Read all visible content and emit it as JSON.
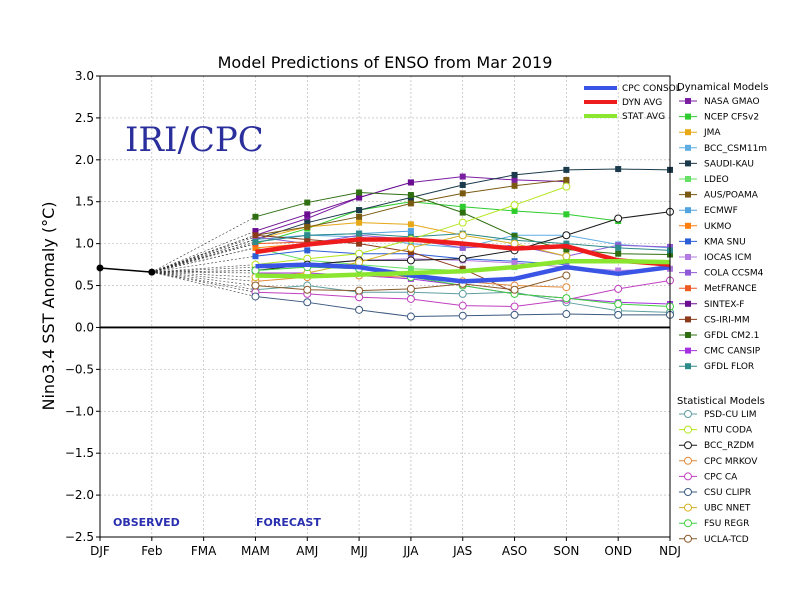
{
  "chart_data": {
    "type": "line",
    "title": "Model Predictions of ENSO from Mar 2019",
    "ylabel": "Nino3.4 SST Anomaly (°C)",
    "watermark": "IRI/CPC",
    "observed_label": "OBSERVED",
    "forecast_label": "FORECAST",
    "categories": [
      "DJF",
      "Feb",
      "FMA",
      "MAM",
      "AMJ",
      "MJJ",
      "JJA",
      "JAS",
      "ASO",
      "SON",
      "OND",
      "NDJ"
    ],
    "ylim": [
      -2.5,
      3.0
    ],
    "yticks": [
      "3.0",
      "2.5",
      "2.0",
      "1.5",
      "1.0",
      "0.5",
      "0.0",
      "−0.5",
      "−1.0",
      "−1.5",
      "−2.0",
      "−2.5"
    ],
    "grid": true,
    "observed": {
      "values": [
        0.71,
        0.66
      ]
    },
    "averages": [
      {
        "name": "CPC CONSOL",
        "color": "#3a55e6",
        "values": [
          null,
          null,
          null,
          0.73,
          0.75,
          0.72,
          0.62,
          0.55,
          0.58,
          0.72,
          0.64,
          0.72
        ]
      },
      {
        "name": "DYN AVG",
        "color": "#ee1c1c",
        "values": [
          null,
          null,
          null,
          0.9,
          0.99,
          1.05,
          1.05,
          1.0,
          0.94,
          0.97,
          0.8,
          0.75
        ]
      },
      {
        "name": "STAT AVG",
        "color": "#8ae62e",
        "values": [
          null,
          null,
          null,
          0.62,
          0.61,
          0.63,
          0.65,
          0.67,
          0.72,
          0.79,
          0.79,
          0.78
        ]
      }
    ],
    "dynamical_title": "Dynamical Models",
    "dynamical": [
      {
        "name": "NASA GMAO",
        "color": "#7b1fa2",
        "values": [
          null,
          null,
          null,
          1.1,
          1.3,
          1.55,
          1.73,
          1.8,
          1.76,
          1.74,
          null,
          null
        ]
      },
      {
        "name": "NCEP CFSv2",
        "color": "#2ecc2e",
        "values": [
          null,
          null,
          null,
          1.0,
          1.18,
          1.4,
          1.5,
          1.44,
          1.39,
          1.35,
          1.27,
          null
        ]
      },
      {
        "name": "JMA",
        "color": "#e6a817",
        "values": [
          null,
          null,
          null,
          1.05,
          1.2,
          1.25,
          1.23,
          1.1,
          null,
          null,
          null,
          null
        ]
      },
      {
        "name": "BCC_CSM11m",
        "color": "#5dade2",
        "values": [
          null,
          null,
          null,
          1.02,
          1.1,
          1.08,
          1.0,
          0.95,
          1.1,
          1.1,
          0.99,
          0.95
        ]
      },
      {
        "name": "SAUDI-KAU",
        "color": "#1b3a4b",
        "values": [
          null,
          null,
          null,
          1.05,
          1.25,
          1.4,
          1.55,
          1.7,
          1.82,
          1.88,
          1.89,
          1.88
        ]
      },
      {
        "name": "LDEO",
        "color": "#66e066",
        "values": [
          null,
          null,
          null,
          0.95,
          0.8,
          0.75,
          0.7,
          0.68,
          0.72,
          0.8,
          null,
          null
        ]
      },
      {
        "name": "AUS/POAMA",
        "color": "#7a5a10",
        "values": [
          null,
          null,
          null,
          1.1,
          1.2,
          1.32,
          1.48,
          1.6,
          1.69,
          1.76,
          null,
          null
        ]
      },
      {
        "name": "ECMWF",
        "color": "#4fa3e0",
        "values": [
          null,
          null,
          null,
          1.05,
          1.1,
          1.12,
          1.15,
          null,
          null,
          null,
          null,
          null
        ]
      },
      {
        "name": "UKMO",
        "color": "#ff7f0e",
        "values": [
          null,
          null,
          null,
          0.95,
          1.0,
          null,
          null,
          null,
          null,
          null,
          null,
          null
        ]
      },
      {
        "name": "KMA SNU",
        "color": "#2c5fd6",
        "values": [
          null,
          null,
          null,
          0.85,
          0.92,
          0.88,
          0.88,
          0.82,
          0.79,
          0.75,
          null,
          null
        ]
      },
      {
        "name": "IOCAS ICM",
        "color": "#b27ce0",
        "values": [
          null,
          null,
          null,
          0.72,
          0.75,
          0.8,
          0.82,
          0.8,
          0.77,
          0.72,
          0.68,
          0.7
        ]
      },
      {
        "name": "COLA CCSM4",
        "color": "#8e5ad6",
        "values": [
          null,
          null,
          null,
          1.08,
          1.0,
          1.1,
          1.05,
          0.95,
          0.98,
          0.85,
          0.98,
          0.96
        ]
      },
      {
        "name": "MetFRANCE",
        "color": "#ee5a24",
        "values": [
          null,
          null,
          null,
          1.0,
          1.02,
          1.05,
          null,
          null,
          null,
          null,
          null,
          null
        ]
      },
      {
        "name": "SINTEX-F",
        "color": "#6a0d91",
        "values": [
          null,
          null,
          null,
          1.15,
          1.35,
          1.55,
          1.73,
          null,
          null,
          null,
          null,
          null
        ]
      },
      {
        "name": "CS-IRI-MM",
        "color": "#8b3a1a",
        "values": [
          null,
          null,
          null,
          1.1,
          1.05,
          1.0,
          0.9,
          0.7,
          0.42,
          null,
          null,
          null
        ]
      },
      {
        "name": "GFDL CM2.1",
        "color": "#2f6f12",
        "values": [
          null,
          null,
          null,
          1.32,
          1.49,
          1.61,
          1.58,
          1.37,
          1.09,
          0.93,
          0.88,
          0.87
        ]
      },
      {
        "name": "CMC CANSIP",
        "color": "#a531e0",
        "values": [
          null,
          null,
          null,
          0.65,
          0.65,
          0.62,
          0.58,
          0.5,
          0.4,
          0.35,
          0.3,
          0.28
        ]
      },
      {
        "name": "GFDL FLOR",
        "color": "#2e8b8b",
        "values": [
          null,
          null,
          null,
          1.02,
          1.1,
          1.12,
          1.08,
          1.12,
          1.04,
          1.0,
          0.95,
          0.92
        ]
      }
    ],
    "statistical_title": "Statistical Models",
    "statistical": [
      {
        "name": "PSD-CU LIM",
        "color": "#5f9ea0",
        "values": [
          null,
          null,
          null,
          0.45,
          0.5,
          0.42,
          0.42,
          0.4,
          0.42,
          0.3,
          0.2,
          0.18
        ]
      },
      {
        "name": "NTU CODA",
        "color": "#b5e61d",
        "values": [
          null,
          null,
          null,
          0.75,
          0.82,
          0.88,
          1.05,
          1.25,
          1.46,
          1.68,
          null,
          null
        ]
      },
      {
        "name": "BCC_RZDM",
        "color": "#1a1a1a",
        "values": [
          null,
          null,
          null,
          0.68,
          0.75,
          0.8,
          0.8,
          0.82,
          0.92,
          1.1,
          1.3,
          1.38
        ]
      },
      {
        "name": "CPC MRKOV",
        "color": "#e08a3c",
        "values": [
          null,
          null,
          null,
          0.55,
          0.6,
          0.62,
          0.6,
          0.55,
          0.5,
          0.48,
          null,
          null
        ]
      },
      {
        "name": "CPC CA",
        "color": "#c040c0",
        "values": [
          null,
          null,
          null,
          0.42,
          0.4,
          0.36,
          0.34,
          0.26,
          0.25,
          0.33,
          0.46,
          0.56
        ]
      },
      {
        "name": "CSU CLIPR",
        "color": "#3d5a80",
        "values": [
          null,
          null,
          null,
          0.37,
          0.3,
          0.21,
          0.13,
          0.14,
          0.15,
          0.16,
          0.15,
          0.15
        ]
      },
      {
        "name": "UBC NNET",
        "color": "#d4b020",
        "values": [
          null,
          null,
          null,
          0.6,
          0.65,
          0.78,
          0.95,
          1.1,
          1.0,
          0.85,
          null,
          null
        ]
      },
      {
        "name": "FSU REGR",
        "color": "#40d040",
        "values": [
          null,
          null,
          null,
          0.68,
          0.72,
          0.7,
          0.6,
          0.5,
          0.4,
          0.35,
          0.28,
          0.25
        ]
      },
      {
        "name": "UCLA-TCD",
        "color": "#8b5a2b",
        "values": [
          null,
          null,
          null,
          0.5,
          0.45,
          0.44,
          0.46,
          0.52,
          0.45,
          0.62,
          null,
          null
        ]
      }
    ]
  }
}
